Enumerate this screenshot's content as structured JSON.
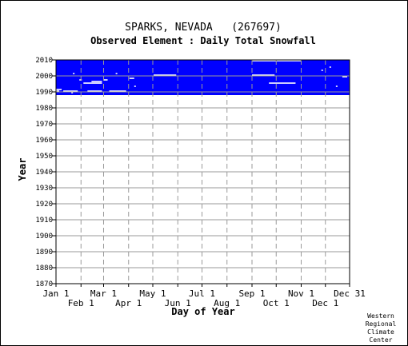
{
  "header": {
    "title": "SPARKS, NEVADA   (267697)",
    "subtitle": "Observed Element : Daily Total Snowfall"
  },
  "credit": [
    "Western",
    "Regional",
    "Climate",
    "Center"
  ],
  "chart_data": {
    "type": "heatmap",
    "title": "SPARKS, NEVADA   (267697)",
    "subtitle": "Observed Element : Daily Total Snowfall",
    "xlabel": "Day of Year",
    "ylabel": "Year",
    "ylim": [
      1870,
      2010
    ],
    "xlim": [
      1,
      365
    ],
    "yticks": [
      1870,
      1880,
      1890,
      1900,
      1910,
      1920,
      1930,
      1940,
      1950,
      1960,
      1970,
      1980,
      1990,
      2000,
      2010
    ],
    "xticks_top_row": [
      {
        "label": "Jan 1",
        "day": 1
      },
      {
        "label": "Mar 1",
        "day": 60
      },
      {
        "label": "May 1",
        "day": 121
      },
      {
        "label": "Jul 1",
        "day": 182
      },
      {
        "label": "Sep 1",
        "day": 244
      },
      {
        "label": "Nov 1",
        "day": 305
      },
      {
        "label": "Dec 31",
        "day": 365
      }
    ],
    "xticks_bottom_row": [
      {
        "label": "Feb 1",
        "day": 32
      },
      {
        "label": "Apr 1",
        "day": 91
      },
      {
        "label": "Jun 1",
        "day": 152
      },
      {
        "label": "Aug 1",
        "day": 213
      },
      {
        "label": "Oct 1",
        "day": 274
      },
      {
        "label": "Dec 1",
        "day": 335
      }
    ],
    "grid": true,
    "color_observed": "#0000ff",
    "observed_period": {
      "start_year": 1988,
      "end_year": 2010
    },
    "missing_gaps": [
      {
        "year": 1990,
        "day_start": 1,
        "day_end": 5
      },
      {
        "year": 1990,
        "day_start": 10,
        "day_end": 28
      },
      {
        "year": 1990,
        "day_start": 40,
        "day_end": 58
      },
      {
        "year": 1990,
        "day_start": 67,
        "day_end": 88
      },
      {
        "year": 1991,
        "day_start": 1,
        "day_end": 8
      },
      {
        "year": 1995,
        "day_start": 35,
        "day_end": 58
      },
      {
        "year": 1996,
        "day_start": 45,
        "day_end": 58
      },
      {
        "year": 1997,
        "day_start": 60,
        "day_end": 65
      },
      {
        "year": 1997,
        "day_start": 30,
        "day_end": 33
      },
      {
        "year": 1998,
        "day_start": 92,
        "day_end": 98
      },
      {
        "year": 2000,
        "day_start": 122,
        "day_end": 150
      },
      {
        "year": 2000,
        "day_start": 244,
        "day_end": 272
      },
      {
        "year": 1995,
        "day_start": 265,
        "day_end": 298
      },
      {
        "year": 2009,
        "day_start": 244,
        "day_end": 305
      },
      {
        "year": 1987,
        "day_start": 305,
        "day_end": 348
      },
      {
        "year": 1987,
        "day_start": 355,
        "day_end": 365
      },
      {
        "year": 2001,
        "day_start": 22,
        "day_end": 24
      },
      {
        "year": 2001,
        "day_start": 75,
        "day_end": 77
      },
      {
        "year": 2003,
        "day_start": 330,
        "day_end": 332
      },
      {
        "year": 1993,
        "day_start": 348,
        "day_end": 350
      },
      {
        "year": 1999,
        "day_start": 356,
        "day_end": 362
      },
      {
        "year": 2005,
        "day_start": 340,
        "day_end": 342
      },
      {
        "year": 1989,
        "day_start": 20,
        "day_end": 22
      },
      {
        "year": 1993,
        "day_start": 98,
        "day_end": 100
      }
    ]
  }
}
